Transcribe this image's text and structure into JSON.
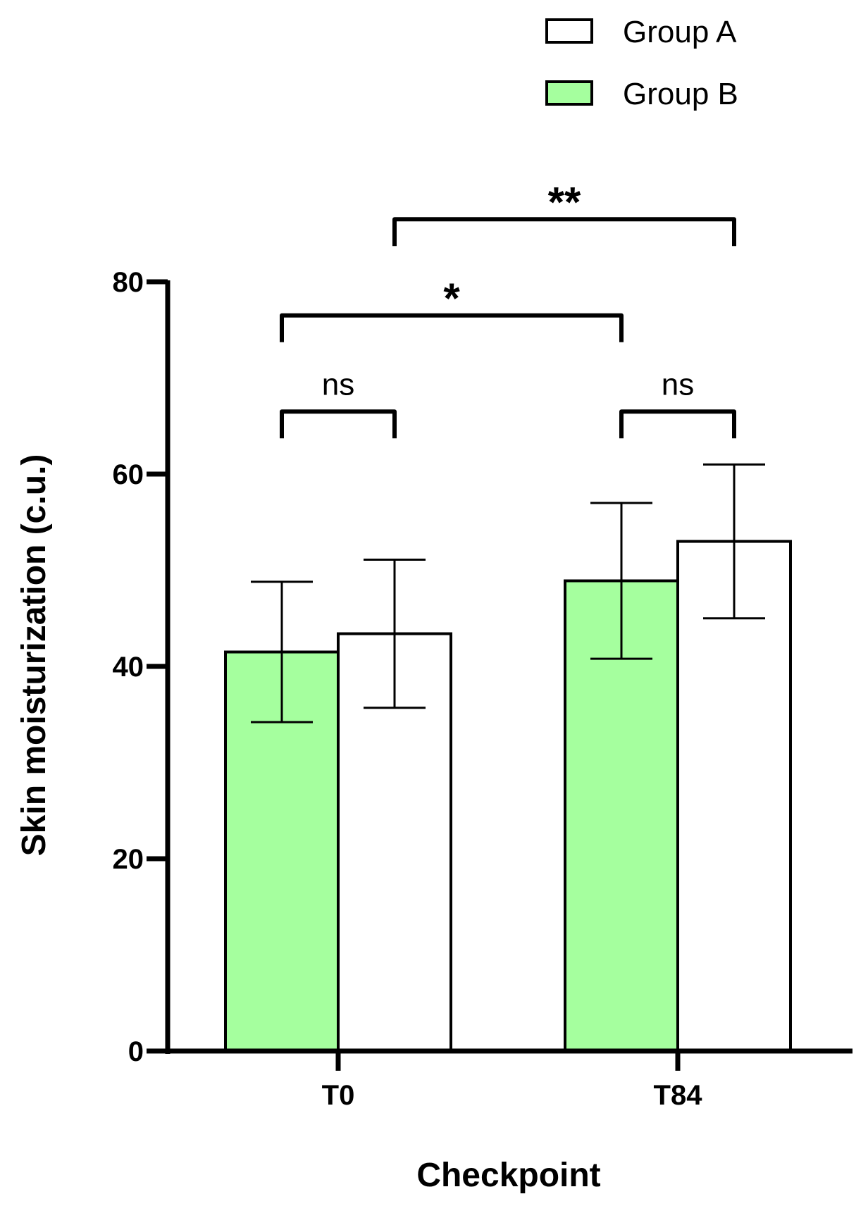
{
  "chart_data": {
    "type": "bar",
    "categories": [
      "T0",
      "T84"
    ],
    "series": [
      {
        "name": "Group B",
        "values": [
          41.5,
          48.9
        ],
        "errors": [
          7.3,
          8.1
        ],
        "color": "#a5ff9e"
      },
      {
        "name": "Group A",
        "values": [
          43.4,
          53.0
        ],
        "errors": [
          7.7,
          8.0
        ],
        "color": "#ffffff"
      }
    ],
    "legend": {
      "position": "top-right",
      "items": [
        {
          "label": "Group A",
          "color": "#ffffff"
        },
        {
          "label": "Group B",
          "color": "#a5ff9e"
        }
      ]
    },
    "xlabel": "Checkpoint",
    "ylabel": "Skin moisturization (c.u.)",
    "ylim": [
      0,
      80
    ],
    "yticks": [
      0,
      20,
      40,
      60,
      80
    ],
    "grid": false,
    "annotations": [
      {
        "text": "ns",
        "from": {
          "category": "T0",
          "series": "Group B"
        },
        "to": {
          "category": "T0",
          "series": "Group A"
        },
        "y": 66.5
      },
      {
        "text": "ns",
        "from": {
          "category": "T84",
          "series": "Group B"
        },
        "to": {
          "category": "T84",
          "series": "Group A"
        },
        "y": 66.5
      },
      {
        "text": "*",
        "from": {
          "category": "T0",
          "series": "Group B"
        },
        "to": {
          "category": "T84",
          "series": "Group B"
        },
        "y": 76.5
      },
      {
        "text": "**",
        "from": {
          "category": "T0",
          "series": "Group A"
        },
        "to": {
          "category": "T84",
          "series": "Group A"
        },
        "y": 86.5
      }
    ]
  }
}
